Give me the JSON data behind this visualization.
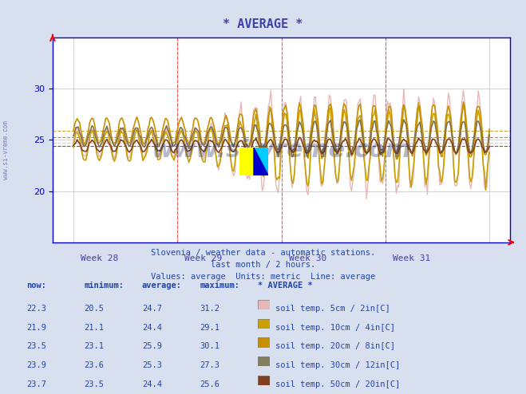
{
  "title": "* AVERAGE *",
  "title_color": "#4040aa",
  "bg_color": "#d8e0f0",
  "plot_bg_color": "#ffffff",
  "axis_color": "#0000cc",
  "grid_color": "#c0c0c0",
  "watermark": "www.si-vreme.com",
  "xlabel_color": "#4040aa",
  "text_lines": [
    "Slovenia / weather data - automatic stations.",
    "last month / 2 hours.",
    "Values: average  Units: metric  Line: average"
  ],
  "x_labels": [
    "Week 28",
    "Week 29",
    "Week 30",
    "Week 31"
  ],
  "ylim": [
    15,
    35
  ],
  "yticks": [
    20,
    25,
    30
  ],
  "colors": [
    "#e8b8b8",
    "#c8a000",
    "#c89000",
    "#807050",
    "#804020"
  ],
  "avg_vals": [
    24.7,
    24.4,
    25.9,
    25.3,
    24.4
  ],
  "legend_colors": [
    "#e8b8b8",
    "#c8a000",
    "#c89000",
    "#808060",
    "#804020"
  ],
  "table_header": [
    "now:",
    "minimum:",
    "average:",
    "maximum:",
    "* AVERAGE *"
  ],
  "table_rows": [
    [
      22.3,
      20.5,
      24.7,
      31.2,
      "soil temp. 5cm / 2in[C]"
    ],
    [
      21.9,
      21.1,
      24.4,
      29.1,
      "soil temp. 10cm / 4in[C]"
    ],
    [
      23.5,
      23.1,
      25.9,
      30.1,
      "soil temp. 20cm / 8in[C]"
    ],
    [
      23.9,
      23.6,
      25.3,
      27.3,
      "soil temp. 30cm / 12in[C]"
    ],
    [
      23.7,
      23.5,
      24.4,
      25.6,
      "soil temp. 50cm / 20in[C]"
    ]
  ]
}
